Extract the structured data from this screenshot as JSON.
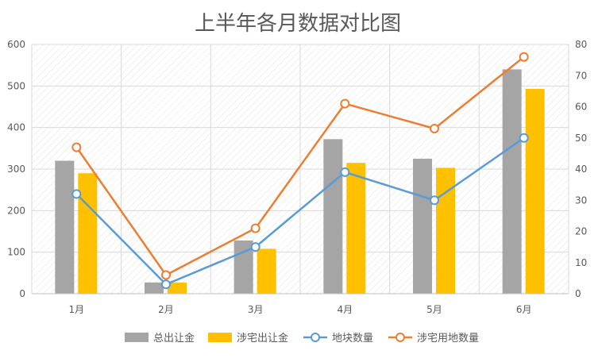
{
  "chart_data": {
    "type": "bar",
    "title": "上半年各月数据对比图",
    "categories": [
      "1月",
      "2月",
      "3月",
      "4月",
      "5月",
      "6月"
    ],
    "y_left": {
      "min": 0,
      "max": 600,
      "step": 100,
      "ticks": [
        "0",
        "100",
        "200",
        "300",
        "400",
        "500",
        "600"
      ]
    },
    "y_right": {
      "min": 0,
      "max": 80,
      "step": 10,
      "ticks": [
        "0",
        "10",
        "20",
        "30",
        "40",
        "50",
        "60",
        "70",
        "80"
      ]
    },
    "grid": true,
    "legend_position": "bottom",
    "series": [
      {
        "name": "总出让金",
        "kind": "bar",
        "axis": "left",
        "color": "#a5a5a5",
        "values": [
          320,
          27,
          128,
          372,
          325,
          540
        ]
      },
      {
        "name": "涉宅出让金",
        "kind": "bar",
        "axis": "left",
        "color": "#ffc000",
        "values": [
          290,
          27,
          108,
          315,
          303,
          493
        ]
      },
      {
        "name": "地块数量",
        "kind": "line",
        "axis": "right",
        "color": "#5b9bd5",
        "values": [
          32,
          3,
          15,
          39,
          30,
          50
        ]
      },
      {
        "name": "涉宅用地数量",
        "kind": "line",
        "axis": "right",
        "color": "#ed7d31",
        "values": [
          47,
          6,
          21,
          61,
          53,
          76
        ]
      }
    ]
  }
}
